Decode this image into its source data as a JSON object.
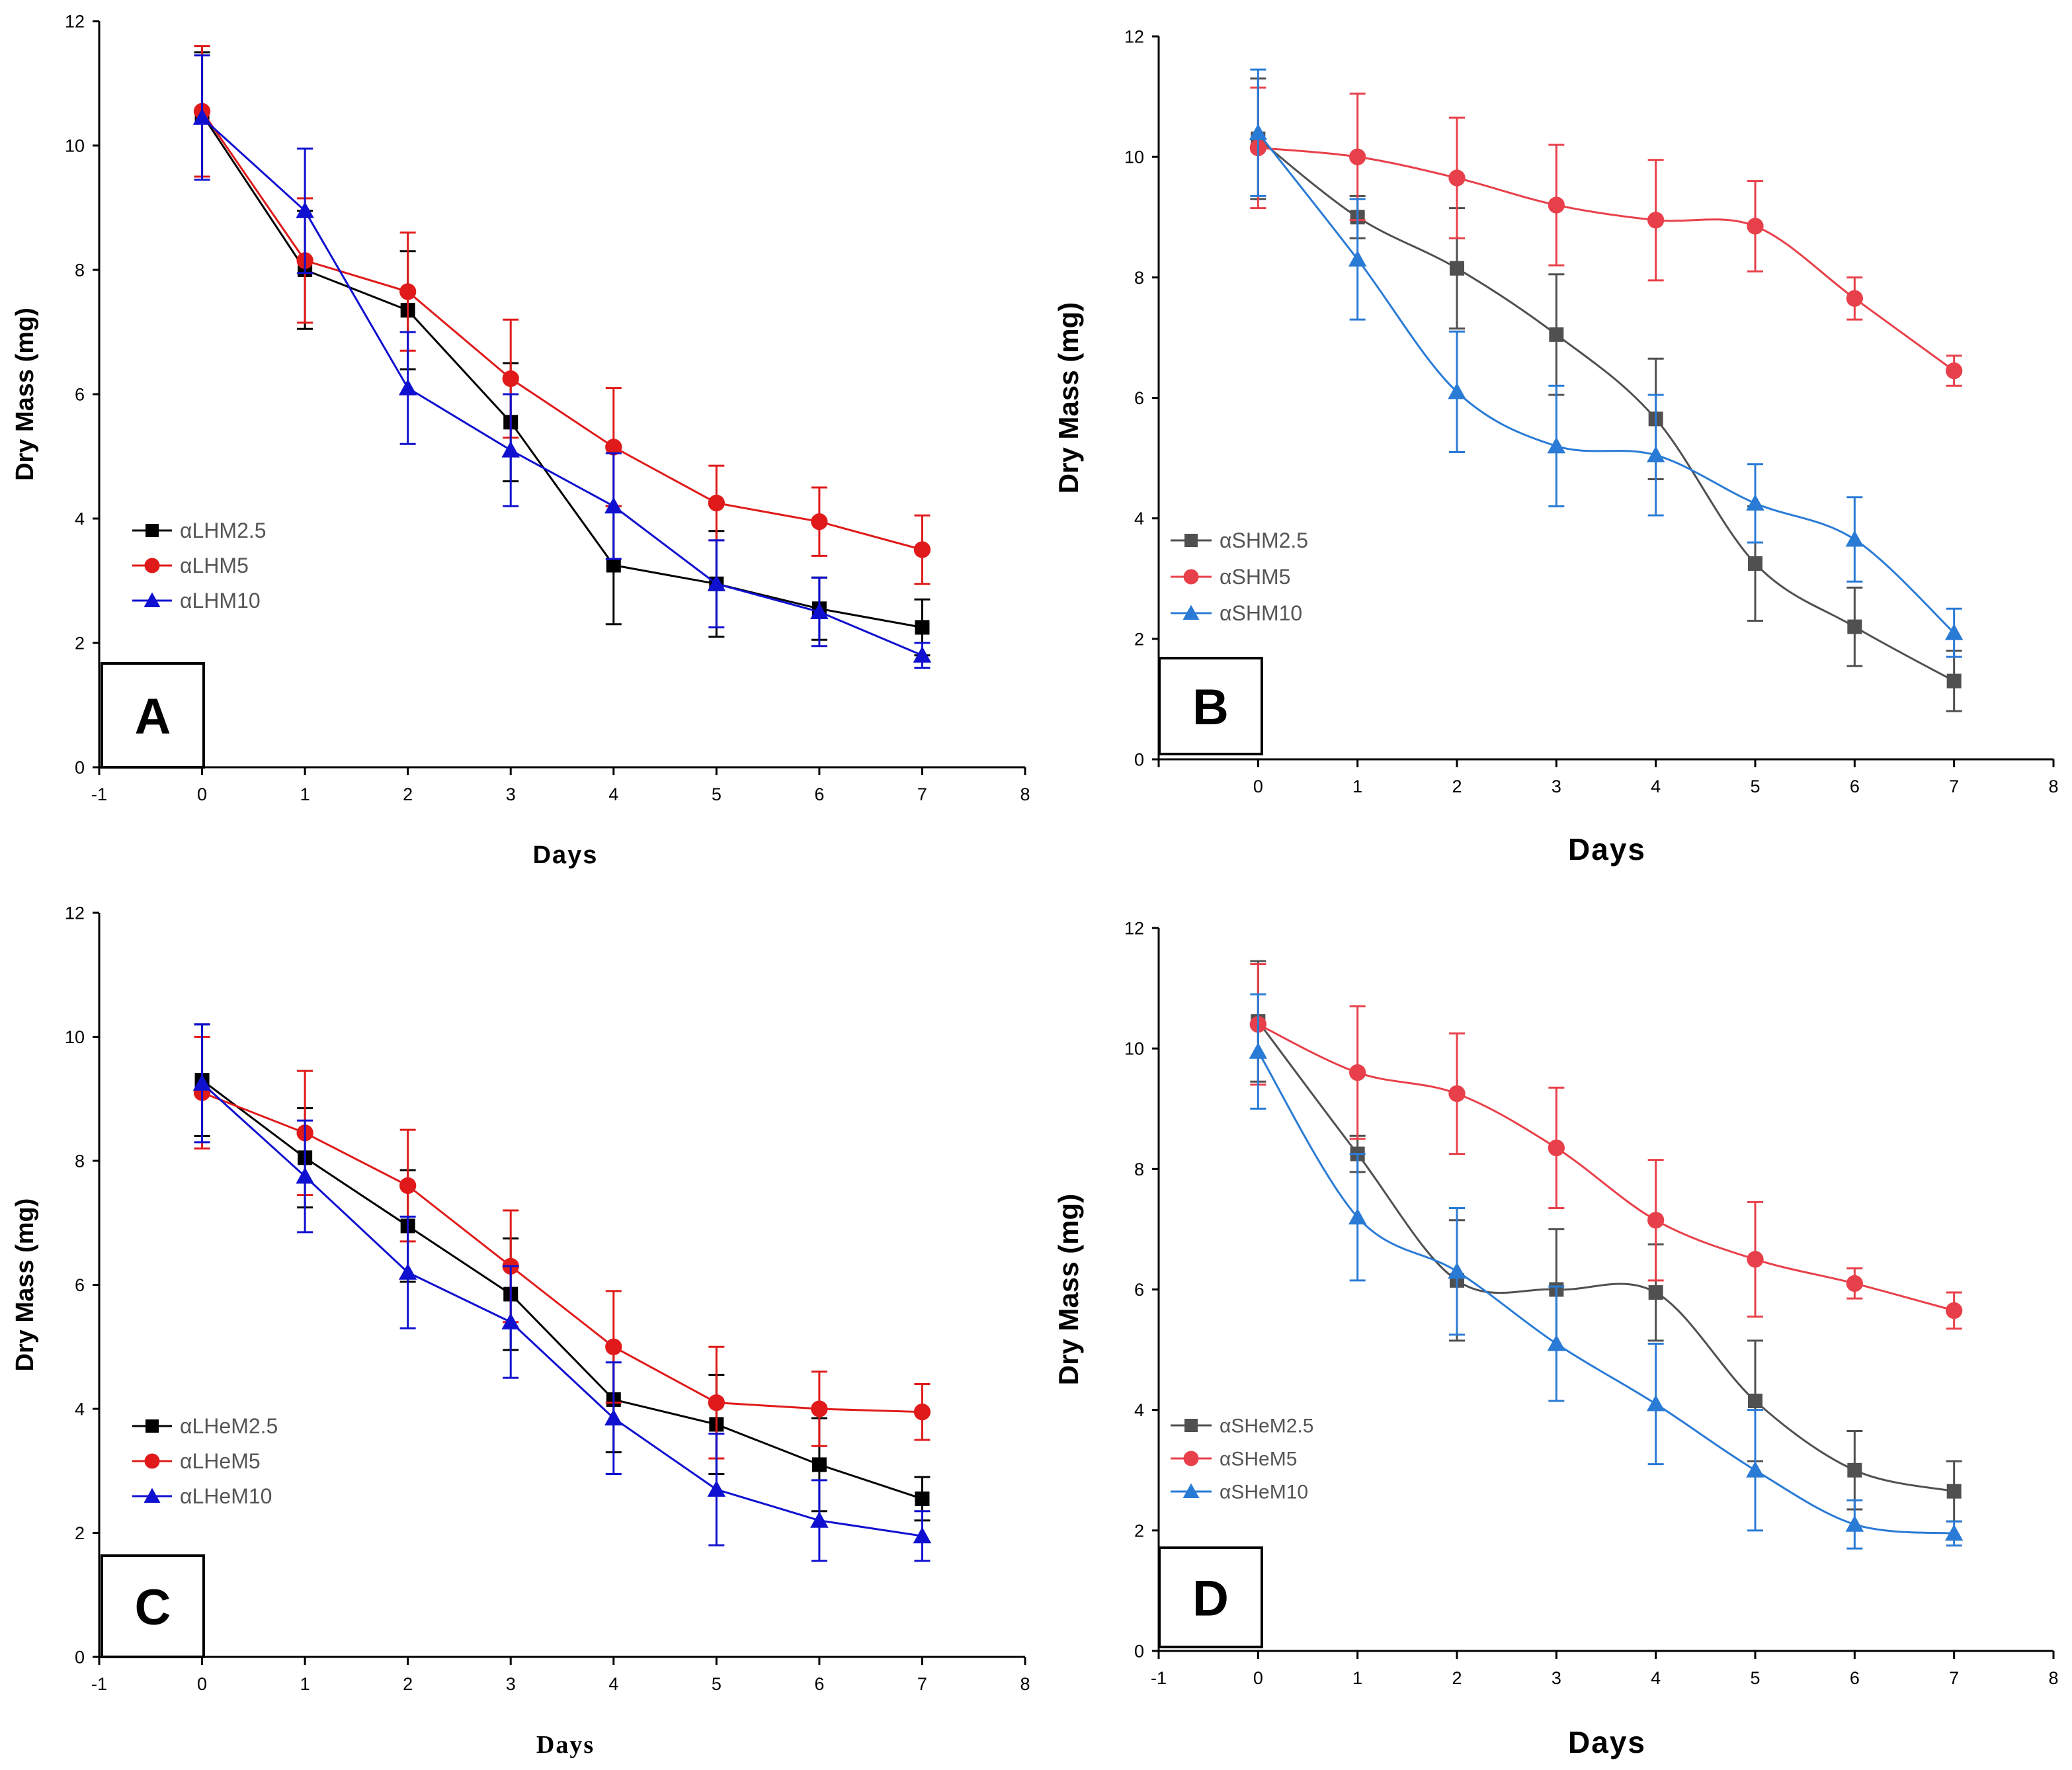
{
  "chart_data": [
    {
      "type": "line",
      "panel_label": "A",
      "xlabel": "Days",
      "ylabel": "Dry Mass (mg)",
      "xlim": [
        -1,
        8
      ],
      "ylim": [
        0,
        12
      ],
      "xticks": [
        "-1",
        "0",
        "1",
        "2",
        "3",
        "4",
        "5",
        "6",
        "7",
        "8"
      ],
      "yticks": [
        "0",
        "2",
        "4",
        "6",
        "8",
        "10",
        "12"
      ],
      "legend_position": "lower-left",
      "x": [
        0,
        1,
        2,
        3,
        4,
        5,
        6,
        7
      ],
      "series": [
        {
          "name": "αLHM2.5",
          "color": "#000000",
          "marker": "square",
          "values": [
            10.5,
            8.0,
            7.35,
            5.55,
            3.25,
            2.95,
            2.55,
            2.25
          ],
          "errors": [
            1.0,
            0.95,
            0.95,
            0.95,
            0.95,
            0.85,
            0.5,
            0.45
          ]
        },
        {
          "name": "αLHM5",
          "color": "#e01a1a",
          "marker": "circle",
          "values": [
            10.55,
            8.15,
            7.65,
            6.25,
            5.15,
            4.25,
            3.95,
            3.5
          ],
          "errors": [
            1.05,
            1.0,
            0.95,
            0.95,
            0.95,
            0.6,
            0.55,
            0.55
          ]
        },
        {
          "name": "αLHM10",
          "color": "#1010d0",
          "marker": "triangle",
          "values": [
            10.45,
            8.95,
            6.1,
            5.1,
            4.2,
            2.95,
            2.5,
            1.8
          ],
          "errors": [
            1.0,
            1.0,
            0.9,
            0.9,
            0.85,
            0.7,
            0.55,
            0.2
          ]
        }
      ]
    },
    {
      "type": "line",
      "panel_label": "B",
      "xlabel": "Days",
      "ylabel": "Dry Mass (mg)",
      "xlim": [
        -1,
        8
      ],
      "ylim": [
        0,
        12
      ],
      "xticks": [
        "0",
        "1",
        "2",
        "3",
        "4",
        "5",
        "6",
        "7",
        "8"
      ],
      "yticks": [
        "0",
        "2",
        "4",
        "6",
        "8",
        "10",
        "12"
      ],
      "legend_position": "lower-left",
      "x": [
        0,
        1,
        2,
        3,
        4,
        5,
        6,
        7
      ],
      "series": [
        {
          "name": "αSHM2.5",
          "color": "#505050",
          "marker": "square",
          "values": [
            10.3,
            9.0,
            8.15,
            7.05,
            5.65,
            3.25,
            2.2,
            1.3
          ],
          "errors": [
            1.0,
            0.35,
            1.0,
            1.0,
            1.0,
            0.95,
            0.65,
            0.5
          ]
        },
        {
          "name": "αSHM5",
          "color": "#e8404a",
          "marker": "circle",
          "values": [
            10.15,
            10.0,
            9.65,
            9.2,
            8.95,
            8.85,
            7.65,
            6.45
          ],
          "errors": [
            1.0,
            1.05,
            1.0,
            1.0,
            1.0,
            0.75,
            0.35,
            0.25
          ]
        },
        {
          "name": "αSHM10",
          "color": "#2a7bd5",
          "marker": "triangle",
          "values": [
            10.4,
            8.3,
            6.1,
            5.2,
            5.05,
            4.25,
            3.65,
            2.1
          ],
          "errors": [
            1.05,
            1.0,
            1.0,
            1.0,
            1.0,
            0.65,
            0.7,
            0.4
          ]
        }
      ]
    },
    {
      "type": "line",
      "panel_label": "C",
      "xlabel": "Days",
      "ylabel": "Dry Mass (mg)",
      "xlim": [
        -1,
        8
      ],
      "ylim": [
        0,
        12
      ],
      "xticks": [
        "-1",
        "0",
        "1",
        "2",
        "3",
        "4",
        "5",
        "6",
        "7",
        "8"
      ],
      "yticks": [
        "0",
        "2",
        "4",
        "6",
        "8",
        "10",
        "12"
      ],
      "legend_position": "lower-left",
      "x": [
        0,
        1,
        2,
        3,
        4,
        5,
        6,
        7
      ],
      "series": [
        {
          "name": "αLHeM2.5",
          "color": "#000000",
          "marker": "square",
          "values": [
            9.3,
            8.05,
            6.95,
            5.85,
            4.15,
            3.75,
            3.1,
            2.55
          ],
          "errors": [
            0.9,
            0.8,
            0.9,
            0.9,
            0.85,
            0.8,
            0.75,
            0.35
          ]
        },
        {
          "name": "αLHeM5",
          "color": "#e01a1a",
          "marker": "circle",
          "values": [
            9.1,
            8.45,
            7.6,
            6.3,
            5.0,
            4.1,
            4.0,
            3.95
          ],
          "errors": [
            0.9,
            1.0,
            0.9,
            0.9,
            0.9,
            0.9,
            0.6,
            0.45
          ]
        },
        {
          "name": "αLHeM10",
          "color": "#1010d0",
          "marker": "triangle",
          "values": [
            9.25,
            7.75,
            6.2,
            5.4,
            3.85,
            2.7,
            2.2,
            1.95
          ],
          "errors": [
            0.95,
            0.9,
            0.9,
            0.9,
            0.9,
            0.9,
            0.65,
            0.4
          ]
        }
      ]
    },
    {
      "type": "line",
      "panel_label": "D",
      "xlabel": "Days",
      "ylabel": "Dry Mass (mg)",
      "xlim": [
        -1,
        8
      ],
      "ylim": [
        0,
        12
      ],
      "xticks": [
        "-1",
        "0",
        "1",
        "2",
        "3",
        "4",
        "5",
        "6",
        "7",
        "8"
      ],
      "yticks": [
        "0",
        "2",
        "4",
        "6",
        "8",
        "10",
        "12"
      ],
      "legend_position": "lower-left",
      "x": [
        0,
        1,
        2,
        3,
        4,
        5,
        6,
        7
      ],
      "series": [
        {
          "name": "αSHeM2.5",
          "color": "#505050",
          "marker": "square",
          "values": [
            10.45,
            8.25,
            6.15,
            6.0,
            5.95,
            4.15,
            3.0,
            2.65
          ],
          "errors": [
            1.0,
            0.3,
            1.0,
            1.0,
            0.8,
            1.0,
            0.65,
            0.5
          ]
        },
        {
          "name": "αSHeM5",
          "color": "#e8404a",
          "marker": "circle",
          "values": [
            10.4,
            9.6,
            9.25,
            8.35,
            7.15,
            6.5,
            6.1,
            5.65
          ],
          "errors": [
            1.0,
            1.1,
            1.0,
            1.0,
            1.0,
            0.95,
            0.25,
            0.3
          ]
        },
        {
          "name": "αSHeM10",
          "color": "#2a7bd5",
          "marker": "triangle",
          "values": [
            9.95,
            7.2,
            6.3,
            5.1,
            4.1,
            3.0,
            2.1,
            1.95
          ],
          "errors": [
            0.95,
            1.05,
            1.05,
            0.95,
            1.0,
            1.0,
            0.4,
            0.2
          ]
        }
      ]
    }
  ]
}
